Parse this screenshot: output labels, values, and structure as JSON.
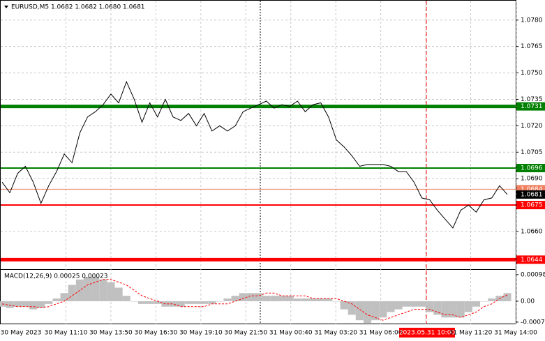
{
  "chart_data": {
    "type": "line",
    "title": "EURUSD,M5  1.0682 1.0682 1.0680 1.0681",
    "color": "#000000",
    "values": [
      1.0688,
      1.0682,
      1.0693,
      1.0697,
      1.0688,
      1.0676,
      1.0686,
      1.0694,
      1.0704,
      1.0699,
      1.0716,
      1.0725,
      1.0728,
      1.0732,
      1.0738,
      1.0733,
      1.0745,
      1.0735,
      1.0722,
      1.0733,
      1.0725,
      1.0735,
      1.0725,
      1.0723,
      1.0727,
      1.072,
      1.0727,
      1.0717,
      1.072,
      1.0717,
      1.072,
      1.0728,
      1.073,
      1.0732,
      1.0734,
      1.073,
      1.0732,
      1.0731,
      1.0734,
      1.0728,
      1.0732,
      1.0733,
      1.0725,
      1.0712,
      1.0708,
      1.0703,
      1.0697,
      1.0698,
      1.0698,
      1.0698,
      1.0697,
      1.0694,
      1.0694,
      1.0688,
      1.0679,
      1.0678,
      1.0672,
      1.0667,
      1.0662,
      1.0672,
      1.0675,
      1.0671,
      1.0678,
      1.0679,
      1.0686,
      1.0681
    ],
    "ylim": [
      1.0639,
      1.0791
    ],
    "yticks": [
      {
        "value": 1.078,
        "label": "1.0780"
      },
      1.0765,
      {
        "value": 1.075,
        "label": "1.0750"
      },
      1.0735,
      {
        "value": 1.072,
        "label": "1.0720"
      },
      1.0705,
      {
        "value": 1.069,
        "label": "1.0690"
      },
      {
        "value": 1.066,
        "label": "1.0660"
      }
    ],
    "grid": true,
    "levels": [
      {
        "value": 1.0731,
        "label": "1.0731",
        "color": "#008000",
        "width": 5
      },
      {
        "value": 1.0696,
        "label": "1.0696",
        "color": "#008000",
        "width": 2
      },
      {
        "value": 1.0684,
        "label": "1.0684",
        "color": "#f08060",
        "width": 1
      },
      {
        "value": 1.0675,
        "label": "1.0675",
        "color": "#ff0000",
        "width": 2
      },
      {
        "value": 1.0644,
        "label": "1.0644",
        "color": "#ff0000",
        "width": 5
      }
    ],
    "current_price": 1.0681,
    "macd": {
      "title": "MACD(12,26,9) 0.00025 0.00023",
      "ylim": [
        -0.00085,
        0.00113
      ],
      "yticks": [
        0.00098,
        {
          "value": 0,
          "label": "0.00"
        },
        -0.00077
      ],
      "series": [
        {
          "name": "MACD",
          "color": "#c0c0c0",
          "values": [
            -0.0002,
            -0.00025,
            -0.0002,
            -0.0002,
            -0.0003,
            -0.00025,
            -0.0001,
            0.0001,
            0.0003,
            0.0006,
            0.0008,
            0.0009,
            0.0009,
            0.0008,
            0.0007,
            0.0005,
            0.0002,
            0,
            -0.0001,
            -0.0001,
            -0.0001,
            -0.0002,
            -0.0002,
            -0.0002,
            -0.0001,
            -0.0001,
            -0.0001,
            -0.0001,
            0,
            0.0001,
            0.0002,
            0.0003,
            0.0003,
            0.0003,
            0.0002,
            0.0002,
            0.0002,
            0.0002,
            0.0001,
            0.0001,
            0.0001,
            0.0001,
            0.0001,
            0,
            -0.0003,
            -0.0005,
            -0.0007,
            -0.0008,
            -0.0007,
            -0.0006,
            -0.0004,
            -0.0003,
            -0.0002,
            -0.0002,
            -0.0002,
            -0.0004,
            -0.0005,
            -0.0006,
            -0.0006,
            -0.0006,
            -0.0004,
            -0.0002,
            0,
            0.0001,
            0.0002,
            0.0003
          ]
        },
        {
          "name": "Signal",
          "color": "#ff0000",
          "values": [
            -0.0001,
            -0.00015,
            -0.0002,
            -0.0002,
            -0.0002,
            -0.00023,
            -0.0002,
            -0.0001,
            0,
            0.0002,
            0.0004,
            0.0006,
            0.0007,
            0.0008,
            0.0008,
            0.0007,
            0.0006,
            0.0004,
            0.0002,
            0.0001,
            0,
            -0.0001,
            -0.0001,
            -0.0002,
            -0.0002,
            -0.0002,
            -0.0002,
            -0.0001,
            -0.0001,
            -0.0001,
            0,
            0.0001,
            0.0002,
            0.0002,
            0.0003,
            0.0003,
            0.0002,
            0.0002,
            0.0002,
            0.0002,
            0.0001,
            0.0001,
            0.0001,
            0.0001,
            0,
            -0.0001,
            -0.0003,
            -0.0005,
            -0.0006,
            -0.0007,
            -0.0006,
            -0.0005,
            -0.0004,
            -0.0003,
            -0.0003,
            -0.0003,
            -0.0004,
            -0.0005,
            -0.0005,
            -0.0006,
            -0.0005,
            -0.0004,
            -0.0002,
            -0.0001,
            0.0001,
            0.00023
          ]
        }
      ]
    },
    "x_labels": [
      "30 May 2023",
      "30 May 11:10",
      "30 May 13:50",
      "30 May 16:30",
      "30 May 19:10",
      "30 May 21:50",
      "31 May 00:40",
      "31 May 03:20",
      "31 May 06:00",
      "2023.05.31 10:00",
      "31 May 11:20",
      "31 May 14:00"
    ]
  }
}
